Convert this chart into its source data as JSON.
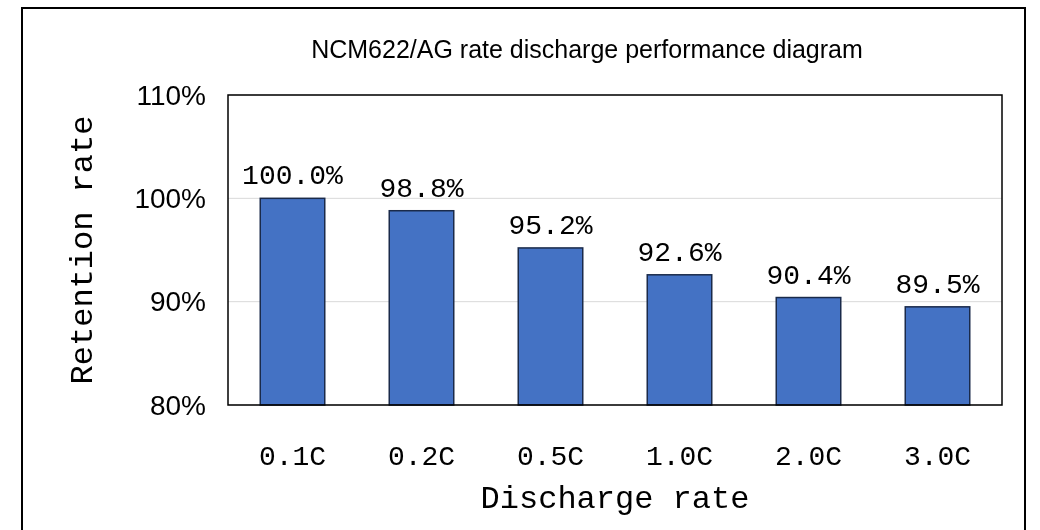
{
  "chart_data": {
    "type": "bar",
    "title": "NCM622/AG rate discharge performance diagram",
    "xlabel": "Discharge rate",
    "ylabel": "Retention rate",
    "categories": [
      "0.1C",
      "0.2C",
      "0.5C",
      "1.0C",
      "2.0C",
      "3.0C"
    ],
    "values": [
      100.0,
      98.8,
      95.2,
      92.6,
      90.4,
      89.5
    ],
    "value_labels": [
      "100.0%",
      "98.8%",
      "95.2%",
      "92.6%",
      "90.4%",
      "89.5%"
    ],
    "color": "#4472c4",
    "ylim": [
      80,
      110
    ],
    "yticks": [
      {
        "value": 80,
        "label": "80%"
      },
      {
        "value": 90,
        "label": "90%"
      },
      {
        "value": 100,
        "label": "100%"
      },
      {
        "value": 110,
        "label": "110%"
      }
    ],
    "grid": "y"
  }
}
